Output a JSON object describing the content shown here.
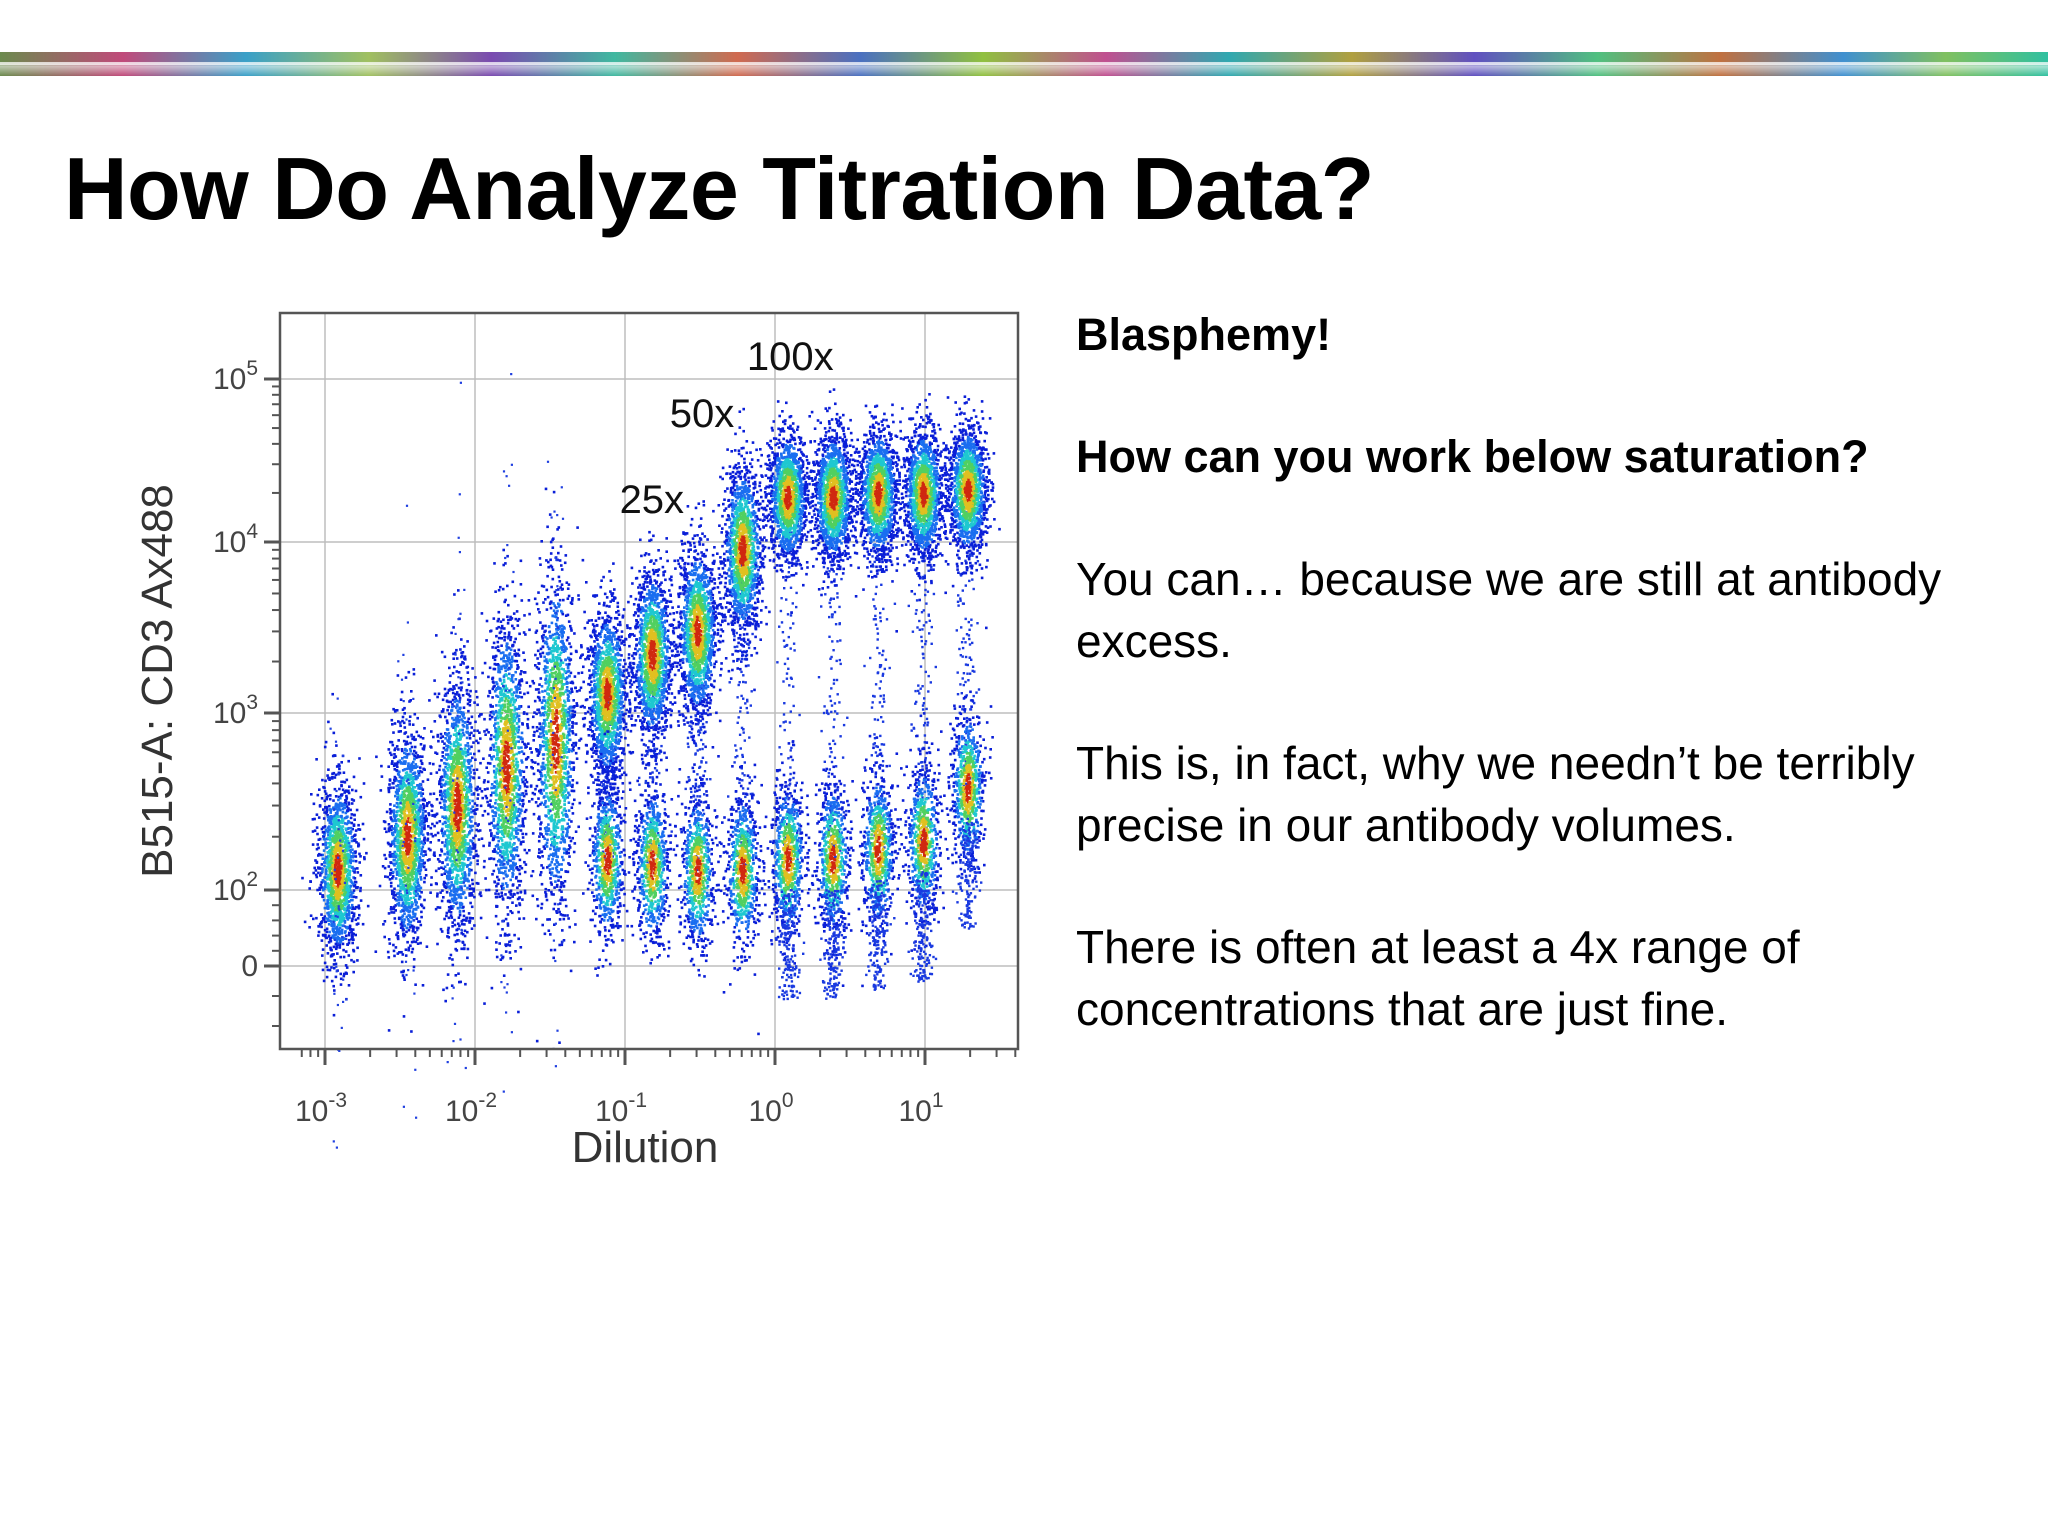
{
  "slide": {
    "title": "How Do Analyze Titration Data?"
  },
  "text_panel": {
    "heading": "Blasphemy!",
    "question": "How can you work below saturation?",
    "paragraphs": [
      "You can… because we are still at antibody excess.",
      "This is, in fact, why we needn’t be terribly precise in our antibody volumes.",
      "There is often at least a 4x range of concentrations that are just fine."
    ]
  },
  "chart_data": {
    "type": "scatter",
    "xlabel": "Dilution",
    "ylabel": "B515-A: CD3 Ax488",
    "x_scale": "log",
    "y_scale": "biexponential",
    "x_ticks": [
      {
        "base": "10",
        "exp": "-3",
        "value": 0.001
      },
      {
        "base": "10",
        "exp": "-2",
        "value": 0.01
      },
      {
        "base": "10",
        "exp": "-1",
        "value": 0.1
      },
      {
        "base": "10",
        "exp": "0",
        "value": 1
      },
      {
        "base": "10",
        "exp": "1",
        "value": 10
      }
    ],
    "y_ticks": [
      {
        "base": "10",
        "exp": "5",
        "value": 100000
      },
      {
        "base": "10",
        "exp": "4",
        "value": 10000
      },
      {
        "base": "10",
        "exp": "3",
        "value": 1000
      },
      {
        "base": "10",
        "exp": "2",
        "value": 100
      },
      {
        "base": "0",
        "exp": "",
        "value": 0
      }
    ],
    "annotations": [
      {
        "text": "100x",
        "dilution": 1.2
      },
      {
        "text": "50x",
        "dilution": 0.6
      },
      {
        "text": "25x",
        "dilution": 0.3
      }
    ],
    "grid": true,
    "populations": [
      {
        "dilution": 0.0012,
        "negative_mfi": 130
      },
      {
        "dilution": 0.0035,
        "negative_mfi": 200
      },
      {
        "dilution": 0.0075,
        "negative_mfi": 300
      },
      {
        "dilution": 0.016,
        "negative_mfi": 500
      },
      {
        "dilution": 0.034,
        "negative_mfi": 700
      },
      {
        "dilution": 0.075,
        "negative_mfi": 150,
        "positive_mfi": 1300
      },
      {
        "dilution": 0.15,
        "negative_mfi": 140,
        "positive_mfi": 2200
      },
      {
        "dilution": 0.3,
        "negative_mfi": 130,
        "positive_mfi": 3000
      },
      {
        "dilution": 0.6,
        "negative_mfi": 130,
        "positive_mfi": 9000
      },
      {
        "dilution": 1.2,
        "negative_mfi": 150,
        "positive_mfi": 19000
      },
      {
        "dilution": 2.4,
        "negative_mfi": 150,
        "positive_mfi": 19000
      },
      {
        "dilution": 4.8,
        "negative_mfi": 170,
        "positive_mfi": 20000
      },
      {
        "dilution": 9.6,
        "negative_mfi": 190,
        "positive_mfi": 20000
      },
      {
        "dilution": 19,
        "negative_mfi": 380,
        "positive_mfi": 21000
      }
    ],
    "colors": {
      "density_low": "#0a1fd8",
      "density_mid": "#1ec8d0",
      "density_high": "#d02810",
      "grid": "#bdbdbd",
      "axis": "#555555"
    }
  }
}
